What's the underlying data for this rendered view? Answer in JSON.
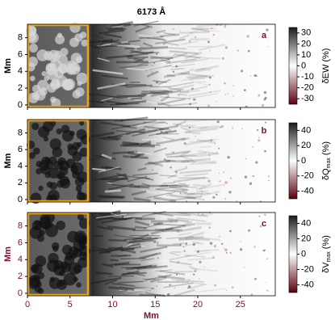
{
  "chart_data": [
    {
      "type": "image",
      "title": "6173 Å",
      "panel_label": "a",
      "ylabel": "Mm",
      "xlim": [
        0,
        29.1
      ],
      "ylim": [
        -0.3,
        9.6
      ],
      "yticks": [
        0,
        2,
        4,
        6,
        8
      ],
      "xticks": [
        0,
        5,
        10,
        15,
        20,
        25
      ],
      "box_x": [
        0,
        7.2
      ],
      "box_color": "#f2a413",
      "label_color": "#000000",
      "colorbar": {
        "label": "δEW",
        "sub": "",
        "unit": "(%)",
        "clim": [
          -35,
          35
        ],
        "ticks": [
          -30,
          -20,
          -10,
          0,
          10,
          20,
          30
        ]
      }
    },
    {
      "type": "image",
      "panel_label": "b",
      "ylabel": "Mm",
      "xlim": [
        0,
        29.1
      ],
      "ylim": [
        -0.3,
        9.6
      ],
      "yticks": [
        0,
        2,
        4,
        6,
        8
      ],
      "xticks": [
        0,
        5,
        10,
        15,
        20,
        25
      ],
      "box_x": [
        0,
        7.2
      ],
      "box_color": "#f2a413",
      "label_color": "#000000",
      "colorbar": {
        "label": "δQ",
        "sub": "max",
        "unit": "(%)",
        "clim": [
          -50,
          50
        ],
        "ticks": [
          -40,
          -20,
          0,
          20,
          40
        ]
      }
    },
    {
      "type": "image",
      "panel_label": "c",
      "ylabel": "Mm",
      "xlabel": "Mm",
      "xlim": [
        0,
        29.1
      ],
      "ylim": [
        -0.3,
        9.6
      ],
      "yticks": [
        0,
        2,
        4,
        6,
        8
      ],
      "xticks": [
        0,
        5,
        10,
        15,
        20,
        25
      ],
      "box_x": [
        0,
        7.2
      ],
      "box_color": "#f2a413",
      "label_color": "#7a1030",
      "colorbar": {
        "label": "δV",
        "sub": "max",
        "unit": "(%)",
        "clim": [
          -50,
          50
        ],
        "ticks": [
          -40,
          -20,
          0,
          20,
          40
        ]
      }
    }
  ]
}
